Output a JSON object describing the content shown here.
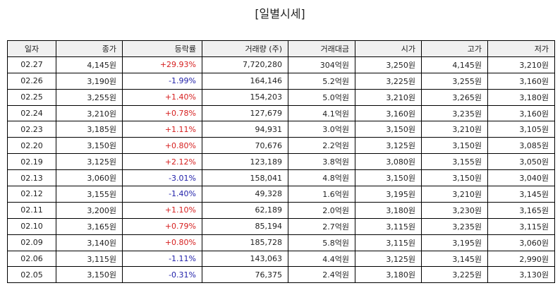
{
  "title": "[일별시세]",
  "table": {
    "header": [
      "일자",
      "종가",
      "등락률",
      "거래량 (주)",
      "거래대금",
      "시가",
      "고가",
      "저가"
    ],
    "rows": [
      [
        "02.27",
        "4,145원",
        "+29.93%",
        "7,720,280",
        "304억원",
        "3,250원",
        "4,145원",
        "3,210원"
      ],
      [
        "02.26",
        "3,190원",
        "-1.99%",
        "164,146",
        "5.2억원",
        "3,225원",
        "3,255원",
        "3,160원"
      ],
      [
        "02.25",
        "3,255원",
        "+1.40%",
        "154,203",
        "5.0억원",
        "3,210원",
        "3,265원",
        "3,180원"
      ],
      [
        "02.24",
        "3,210원",
        "+0.78%",
        "127,679",
        "4.1억원",
        "3,160원",
        "3,235원",
        "3,160원"
      ],
      [
        "02.23",
        "3,185원",
        "+1.11%",
        "94,931",
        "3.0억원",
        "3,150원",
        "3,210원",
        "3,105원"
      ],
      [
        "02.20",
        "3,150원",
        "+0.80%",
        "70,676",
        "2.2억원",
        "3,125원",
        "3,150원",
        "3,085원"
      ],
      [
        "02.19",
        "3,125원",
        "+2.12%",
        "123,189",
        "3.8억원",
        "3,080원",
        "3,155원",
        "3,050원"
      ],
      [
        "02.13",
        "3,060원",
        "-3.01%",
        "158,041",
        "4.8억원",
        "3,150원",
        "3,150원",
        "3,040원"
      ],
      [
        "02.12",
        "3,155원",
        "-1.40%",
        "49,328",
        "1.6억원",
        "3,195원",
        "3,210원",
        "3,145원"
      ],
      [
        "02.11",
        "3,200원",
        "+1.10%",
        "62,189",
        "2.0억원",
        "3,180원",
        "3,230원",
        "3,165원"
      ],
      [
        "02.10",
        "3,165원",
        "+0.79%",
        "85,194",
        "2.7억원",
        "3,115원",
        "3,235원",
        "3,115원"
      ],
      [
        "02.09",
        "3,140원",
        "+0.80%",
        "185,728",
        "5.8억원",
        "3,115원",
        "3,195원",
        "3,060원"
      ],
      [
        "02.06",
        "3,115원",
        "-1.11%",
        "143,063",
        "4.4억원",
        "3,125원",
        "3,145원",
        "2,990원"
      ],
      [
        "02.05",
        "3,150원",
        "-0.31%",
        "76,375",
        "2.4억원",
        "3,180원",
        "3,225원",
        "3,130원"
      ]
    ]
  }
}
